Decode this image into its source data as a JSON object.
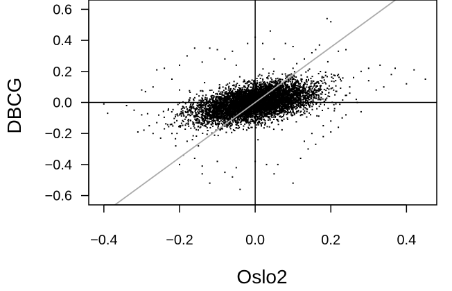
{
  "chart_data": {
    "type": "scatter",
    "title": "",
    "xlabel": "Oslo2",
    "ylabel": "DBCG",
    "xlim": [
      -0.44,
      0.48
    ],
    "ylim": [
      -0.66,
      0.66
    ],
    "x_ticks": [
      -0.4,
      -0.2,
      0.0,
      0.2,
      0.4
    ],
    "x_tick_labels": [
      "−0.4",
      "−0.2",
      "0.0",
      "0.2",
      "0.4"
    ],
    "y_ticks": [
      -0.6,
      -0.4,
      -0.2,
      0.0,
      0.2,
      0.4,
      0.6
    ],
    "y_tick_labels": [
      "−0.6",
      "−0.4",
      "−0.2",
      "0.0",
      "0.2",
      "0.4",
      "0.6"
    ],
    "grid": false,
    "legend": "none",
    "point_color": "#000000",
    "reference_lines": {
      "vertical_at_x": 0.0,
      "horizontal_at_y": 0.0,
      "diagonal": {
        "intercept": 0.0,
        "slope": 1.78,
        "color": "#aaaaaa"
      }
    },
    "points": [
      [
        0.45,
        0.15
      ],
      [
        0.4,
        0.12
      ],
      [
        0.42,
        0.21
      ],
      [
        0.37,
        0.22
      ],
      [
        0.3,
        0.14
      ],
      [
        0.36,
        0.18
      ],
      [
        0.34,
        0.1
      ],
      [
        0.33,
        0.24
      ],
      [
        0.3,
        0.22
      ],
      [
        0.32,
        0.08
      ],
      [
        0.19,
        0.54
      ],
      [
        0.2,
        0.52
      ],
      [
        0.28,
        0.2
      ],
      [
        0.26,
        0.16
      ],
      [
        0.25,
        0.06
      ],
      [
        0.27,
        0.0
      ],
      [
        0.24,
        0.34
      ],
      [
        0.22,
        0.33
      ],
      [
        0.17,
        0.37
      ],
      [
        0.16,
        0.34
      ],
      [
        0.15,
        0.32
      ],
      [
        0.1,
        0.36
      ],
      [
        0.08,
        0.38
      ],
      [
        0.11,
        0.25
      ],
      [
        0.13,
        0.28
      ],
      [
        0.04,
        0.46
      ],
      [
        0.0,
        0.42
      ],
      [
        0.02,
        0.38
      ],
      [
        -0.02,
        0.38
      ],
      [
        -0.06,
        0.33
      ],
      [
        -0.1,
        0.34
      ],
      [
        -0.12,
        0.35
      ],
      [
        -0.16,
        0.35
      ],
      [
        -0.18,
        0.3
      ],
      [
        -0.08,
        0.28
      ],
      [
        -0.14,
        0.26
      ],
      [
        -0.2,
        0.24
      ],
      [
        -0.24,
        0.22
      ],
      [
        -0.26,
        0.21
      ],
      [
        -0.3,
        0.08
      ],
      [
        -0.29,
        0.07
      ],
      [
        -0.4,
        -0.01
      ],
      [
        -0.39,
        -0.07
      ],
      [
        -0.34,
        -0.02
      ],
      [
        -0.32,
        -0.05
      ],
      [
        -0.3,
        -0.08
      ],
      [
        -0.28,
        -0.15
      ],
      [
        -0.26,
        -0.13
      ],
      [
        -0.31,
        -0.19
      ],
      [
        -0.27,
        -0.2
      ],
      [
        -0.24,
        -0.17
      ],
      [
        -0.22,
        -0.2
      ],
      [
        -0.25,
        -0.23
      ],
      [
        -0.21,
        -0.28
      ],
      [
        -0.19,
        -0.34
      ],
      [
        -0.2,
        -0.4
      ],
      [
        -0.16,
        -0.36
      ],
      [
        -0.14,
        -0.46
      ],
      [
        -0.14,
        -0.41
      ],
      [
        -0.1,
        -0.38
      ],
      [
        -0.12,
        -0.52
      ],
      [
        -0.08,
        -0.45
      ],
      [
        -0.06,
        -0.48
      ],
      [
        -0.04,
        -0.56
      ],
      [
        -0.05,
        -0.42
      ],
      [
        0.0,
        -0.38
      ],
      [
        0.03,
        -0.4
      ],
      [
        0.06,
        -0.4
      ],
      [
        0.05,
        -0.46
      ],
      [
        0.1,
        -0.52
      ],
      [
        0.12,
        -0.36
      ],
      [
        0.14,
        -0.3
      ],
      [
        0.16,
        -0.27
      ],
      [
        0.18,
        -0.22
      ],
      [
        0.2,
        -0.19
      ],
      [
        0.22,
        -0.16
      ],
      [
        0.2,
        -0.12
      ],
      [
        0.24,
        -0.08
      ],
      [
        0.21,
        -0.04
      ],
      [
        0.28,
        -0.06
      ],
      [
        0.23,
        -0.1
      ],
      [
        0.1,
        0.22
      ],
      [
        0.05,
        0.28
      ],
      [
        -0.05,
        0.24
      ],
      [
        -0.15,
        -0.28
      ],
      [
        -0.18,
        -0.25
      ],
      [
        0.13,
        -0.25
      ],
      [
        0.15,
        -0.2
      ],
      [
        0.18,
        -0.15
      ],
      [
        -0.22,
        0.15
      ],
      [
        -0.27,
        0.1
      ],
      [
        0.25,
        0.1
      ],
      [
        0.22,
        0.18
      ],
      [
        -0.23,
        -0.05
      ],
      [
        -0.2,
        0.08
      ]
    ],
    "cloud": {
      "description_free": true,
      "center": [
        0.0,
        0.0
      ],
      "sd_major": 0.085,
      "sd_minor": 0.048,
      "angle_deg": 35
    }
  }
}
